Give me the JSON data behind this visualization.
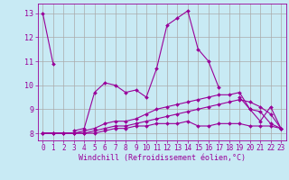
{
  "x": [
    0,
    1,
    2,
    3,
    4,
    5,
    6,
    7,
    8,
    9,
    10,
    11,
    12,
    13,
    14,
    15,
    16,
    17,
    18,
    19,
    20,
    21,
    22,
    23
  ],
  "line1": [
    13.0,
    10.9,
    null,
    8.1,
    8.2,
    9.7,
    10.1,
    10.0,
    9.7,
    9.8,
    9.5,
    10.7,
    12.5,
    12.8,
    13.1,
    11.5,
    11.0,
    9.9,
    null,
    9.5,
    9.0,
    8.5,
    9.1,
    8.2
  ],
  "line2": [
    8.0,
    8.0,
    8.0,
    8.0,
    8.1,
    8.2,
    8.4,
    8.5,
    8.5,
    8.6,
    8.8,
    9.0,
    9.1,
    9.2,
    9.3,
    9.4,
    9.5,
    9.6,
    9.6,
    9.7,
    9.0,
    8.9,
    8.4,
    8.2
  ],
  "line3": [
    8.0,
    8.0,
    8.0,
    8.0,
    8.0,
    8.0,
    8.1,
    8.2,
    8.2,
    8.3,
    8.3,
    8.4,
    8.4,
    8.4,
    8.5,
    8.3,
    8.3,
    8.4,
    8.4,
    8.4,
    8.3,
    8.3,
    8.3,
    8.2
  ],
  "line4": [
    8.0,
    8.0,
    8.0,
    8.0,
    8.0,
    8.1,
    8.2,
    8.3,
    8.3,
    8.4,
    8.5,
    8.6,
    8.7,
    8.8,
    8.9,
    9.0,
    9.1,
    9.2,
    9.3,
    9.4,
    9.3,
    9.1,
    8.8,
    8.2
  ],
  "color": "#990099",
  "bg_color": "#c8eaf4",
  "grid_color": "#aaaaaa",
  "xlabel": "Windchill (Refroidissement éolien,°C)",
  "ylim": [
    7.7,
    13.4
  ],
  "xlim": [
    -0.5,
    23.5
  ],
  "yticks": [
    8,
    9,
    10,
    11,
    12,
    13
  ],
  "xticks": [
    0,
    1,
    2,
    3,
    4,
    5,
    6,
    7,
    8,
    9,
    10,
    11,
    12,
    13,
    14,
    15,
    16,
    17,
    18,
    19,
    20,
    21,
    22,
    23
  ]
}
